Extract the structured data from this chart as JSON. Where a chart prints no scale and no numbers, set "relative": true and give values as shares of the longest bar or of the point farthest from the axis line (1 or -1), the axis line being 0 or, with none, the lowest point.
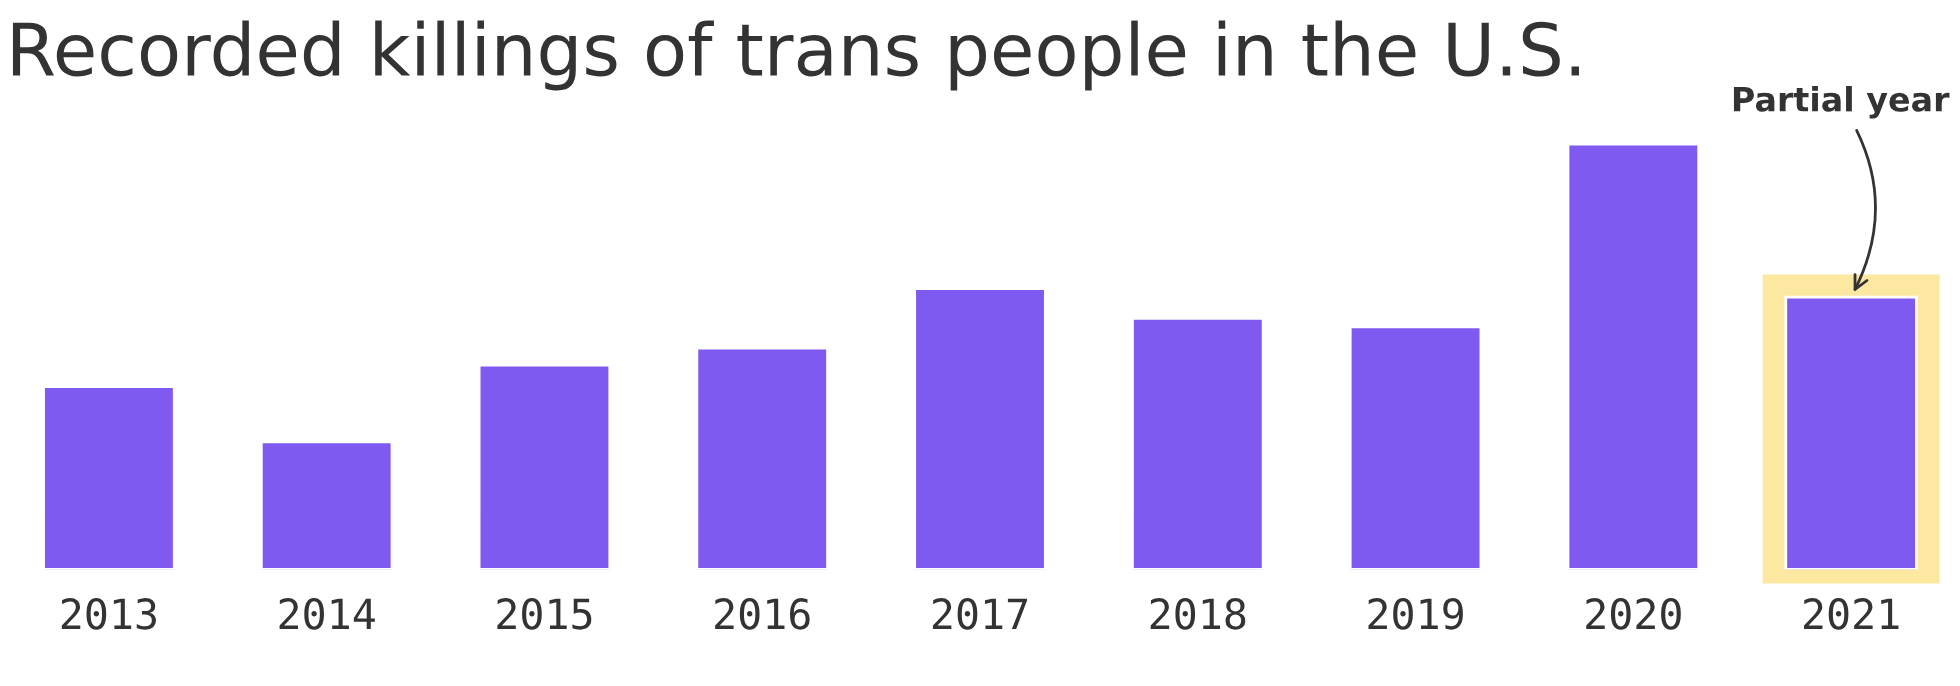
{
  "chart_data": {
    "type": "bar",
    "title": "Recorded killings of trans people in the U.S.",
    "relative": true,
    "categories": [
      "2013",
      "2014",
      "2015",
      "2016",
      "2017",
      "2018",
      "2019",
      "2020",
      "2021"
    ],
    "values": [
      0.43,
      0.3,
      0.48,
      0.52,
      0.66,
      0.59,
      0.57,
      1,
      0.64
    ],
    "color": "#7f5af0",
    "bands": [
      {
        "axis": "x",
        "from": "2021",
        "to": "2021",
        "color": "#fce8a0"
      }
    ],
    "annotations": [
      {
        "text": "Partial year",
        "x": "2021",
        "y": 0.64
      }
    ],
    "grid": false,
    "legend": false
  }
}
